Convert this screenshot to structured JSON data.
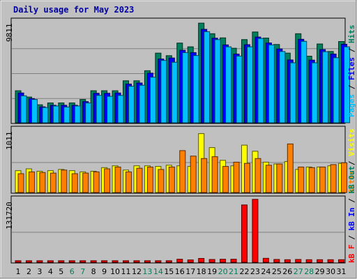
{
  "title": "Daily usage for May 2023",
  "colors": {
    "hits": "#00805c",
    "files": "#0000ff",
    "pages": "#00c0ff",
    "visits": "#ffff00",
    "sites": "#ff8000",
    "kb_in": "#ff0000",
    "kb_out": "#0000ff",
    "frame": "#c0c0c0",
    "weekday": "#000000",
    "weekend": "#00805c"
  },
  "chart_data": [
    {
      "type": "bar",
      "categories": [
        "1",
        "2",
        "3",
        "4",
        "5",
        "6",
        "7",
        "8",
        "9",
        "10",
        "11",
        "12",
        "13",
        "14",
        "15",
        "16",
        "17",
        "18",
        "19",
        "20",
        "21",
        "22",
        "23",
        "24",
        "25",
        "26",
        "27",
        "28",
        "29",
        "30",
        "31"
      ],
      "weekend_days": [
        "6",
        "7",
        "13",
        "14",
        "20",
        "21",
        "27",
        "28"
      ],
      "ymax_label": "9811",
      "ylim": [
        0,
        9811
      ],
      "right_label": [
        {
          "text": "Pages",
          "color_key": "pages"
        },
        {
          "text": " / ",
          "color_key": "weekday"
        },
        {
          "text": "Files",
          "color_key": "files"
        },
        {
          "text": " / ",
          "color_key": "weekday"
        },
        {
          "text": "Hits",
          "color_key": "hits"
        }
      ],
      "series": [
        {
          "name": "Hits",
          "color_key": "hits",
          "values": [
            3150,
            2530,
            1770,
            1950,
            1950,
            1950,
            2290,
            3150,
            3150,
            3150,
            4130,
            4130,
            5120,
            6850,
            6600,
            7840,
            7470,
            9800,
            8760,
            8350,
            7330,
            8180,
            8930,
            8330,
            7700,
            6850,
            8760,
            6550,
            7750,
            7010,
            7990
          ]
        },
        {
          "name": "Files",
          "color_key": "files",
          "values": [
            2930,
            2380,
            1570,
            1720,
            1720,
            1720,
            2080,
            2900,
            2900,
            2930,
            3810,
            3910,
            4880,
            6270,
            6370,
            7130,
            6900,
            9190,
            8320,
            7660,
            6760,
            7680,
            8430,
            7850,
            7260,
            6180,
            8210,
            6160,
            7200,
            6760,
            7720
          ]
        },
        {
          "name": "Pages",
          "color_key": "pages",
          "values": [
            2650,
            2290,
            1500,
            1650,
            1550,
            1650,
            1950,
            2690,
            2600,
            2690,
            3590,
            3690,
            4480,
            6130,
            5950,
            6900,
            6610,
            8960,
            8180,
            7470,
            6560,
            7470,
            8290,
            7660,
            7010,
            5900,
            8010,
            5900,
            6990,
            6400,
            7470
          ]
        }
      ]
    },
    {
      "type": "bar",
      "categories": [
        "1",
        "2",
        "3",
        "4",
        "5",
        "6",
        "7",
        "8",
        "9",
        "10",
        "11",
        "12",
        "13",
        "14",
        "15",
        "16",
        "17",
        "18",
        "19",
        "20",
        "21",
        "22",
        "23",
        "24",
        "25",
        "26",
        "27",
        "28",
        "29",
        "30",
        "31"
      ],
      "ymax_label": "1011",
      "ylim": [
        0,
        1011
      ],
      "right_label": [
        {
          "text": "Sites",
          "color_key": "sites"
        },
        {
          "text": " / ",
          "color_key": "weekday"
        },
        {
          "text": "Visits",
          "color_key": "visits"
        }
      ],
      "series": [
        {
          "name": "Visits",
          "color_key": "visits",
          "values": [
            360,
            390,
            350,
            360,
            380,
            360,
            340,
            350,
            410,
            440,
            370,
            440,
            440,
            430,
            450,
            440,
            430,
            970,
            740,
            530,
            440,
            780,
            680,
            500,
            470,
            510,
            380,
            420,
            420,
            440,
            480
          ]
        },
        {
          "name": "Sites",
          "color_key": "sites",
          "values": [
            310,
            340,
            330,
            320,
            370,
            310,
            320,
            340,
            390,
            420,
            340,
            400,
            420,
            380,
            420,
            690,
            600,
            560,
            590,
            430,
            500,
            480,
            560,
            450,
            470,
            800,
            420,
            410,
            420,
            460,
            490
          ]
        }
      ]
    },
    {
      "type": "bar",
      "categories": [
        "1",
        "2",
        "3",
        "4",
        "5",
        "6",
        "7",
        "8",
        "9",
        "10",
        "11",
        "12",
        "13",
        "14",
        "15",
        "16",
        "17",
        "18",
        "19",
        "20",
        "21",
        "22",
        "23",
        "24",
        "25",
        "26",
        "27",
        "28",
        "29",
        "30",
        "31"
      ],
      "ymax_label": "131720",
      "ylim": [
        0,
        131720
      ],
      "right_label": [
        {
          "text": "kB F",
          "color_key": "kb_in"
        },
        {
          "text": " / ",
          "color_key": "weekday"
        },
        {
          "text": "kB In",
          "color_key": "kb_out"
        },
        {
          "text": " / ",
          "color_key": "weekday"
        },
        {
          "text": "kB Out",
          "color_key": "hits"
        }
      ],
      "series": [
        {
          "name": "kB F",
          "color_key": "kb_in",
          "values": [
            3300,
            3300,
            3300,
            3300,
            3300,
            3300,
            3300,
            3300,
            3300,
            3300,
            3300,
            3300,
            3300,
            3300,
            3300,
            6500,
            5000,
            8200,
            6000,
            6500,
            6500,
            123000,
            135000,
            8500,
            6000,
            5500,
            6000,
            5500,
            5500,
            5500,
            5500
          ]
        }
      ]
    }
  ]
}
